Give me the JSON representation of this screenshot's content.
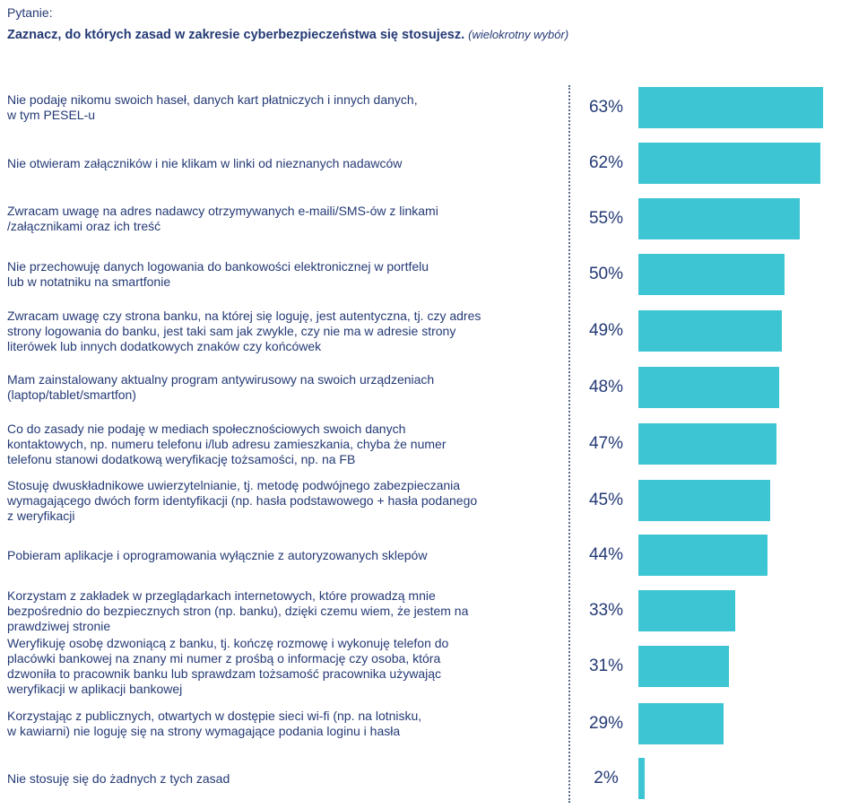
{
  "header": {
    "label": "Pytanie:",
    "question": "Zaznacz, do których zasad w zakresie cyberbezpieczeństwa się stosujesz.",
    "note": "(wielokrotny wybór)"
  },
  "colors": {
    "bar": "#3ec5d3",
    "text": "#243a75"
  },
  "chart_data": {
    "type": "bar",
    "orientation": "horizontal",
    "title": "Zaznacz, do których zasad w zakresie cyberbezpieczeństwa się stosujesz.",
    "unit": "%",
    "xlim": [
      0,
      63
    ],
    "categories": [
      "Nie podaję nikomu swoich haseł, danych kart płatniczych i innych danych,\nw tym PESEL-u",
      "Nie otwieram załączników i nie klikam w linki od nieznanych nadawców",
      "Zwracam uwagę na adres nadawcy otrzymywanych e-maili/SMS-ów z linkami\n/załącznikami oraz ich treść",
      "Nie przechowuję danych logowania do bankowości elektronicznej w portfelu\nlub w notatniku na smartfonie",
      "Zwracam uwagę czy strona banku, na której się loguję, jest autentyczna, tj. czy adres\nstrony logowania do banku, jest taki sam jak zwykle, czy nie ma w adresie strony\nliterówek lub innych dodatkowych znaków czy końcówek",
      "Mam zainstalowany aktualny program antywirusowy na swoich urządzeniach\n(laptop/tablet/smartfon)",
      "Co do zasady nie podaję w mediach społecznościowych swoich danych\nkontaktowych, np. numeru telefonu i/lub adresu zamieszkania, chyba że numer\ntelefonu stanowi dodatkową weryfikację tożsamości, np. na FB",
      "Stosuję dwuskładnikowe uwierzytelnianie, tj. metodę podwójnego zabezpieczania\nwymagającego dwóch form identyfikacji (np. hasła podstawowego + hasła podanego\nz weryfikacji",
      "Pobieram aplikacje i oprogramowania wyłącznie z autoryzowanych sklepów",
      "Korzystam z zakładek w przeglądarkach internetowych, które prowadzą mnie\nbezpośrednio do bezpiecznych stron (np. banku), dzięki czemu wiem, że jestem na\nprawdziwej stronie",
      "Weryfikuję osobę dzwoniącą z banku, tj. kończę rozmowę i wykonuję telefon do\nplacówki bankowej na znany mi numer z prośbą o informację czy osoba, która\ndzwoniła to pracownik banku lub sprawdzam tożsamość pracownika używając\nweryfikacji w aplikacji bankowej",
      "Korzystając z publicznych, otwartych w dostępie sieci wi-fi (np. na lotnisku,\nw kawiarni) nie loguję się na strony wymagające podania loginu i hasła",
      "Nie stosuję się do żadnych z tych zasad"
    ],
    "values": [
      63,
      62,
      55,
      50,
      49,
      48,
      47,
      45,
      44,
      33,
      31,
      29,
      2
    ],
    "labels": [
      "63%",
      "62%",
      "55%",
      "50%",
      "49%",
      "48%",
      "47%",
      "45%",
      "44%",
      "33%",
      "31%",
      "29%",
      "2%"
    ]
  }
}
